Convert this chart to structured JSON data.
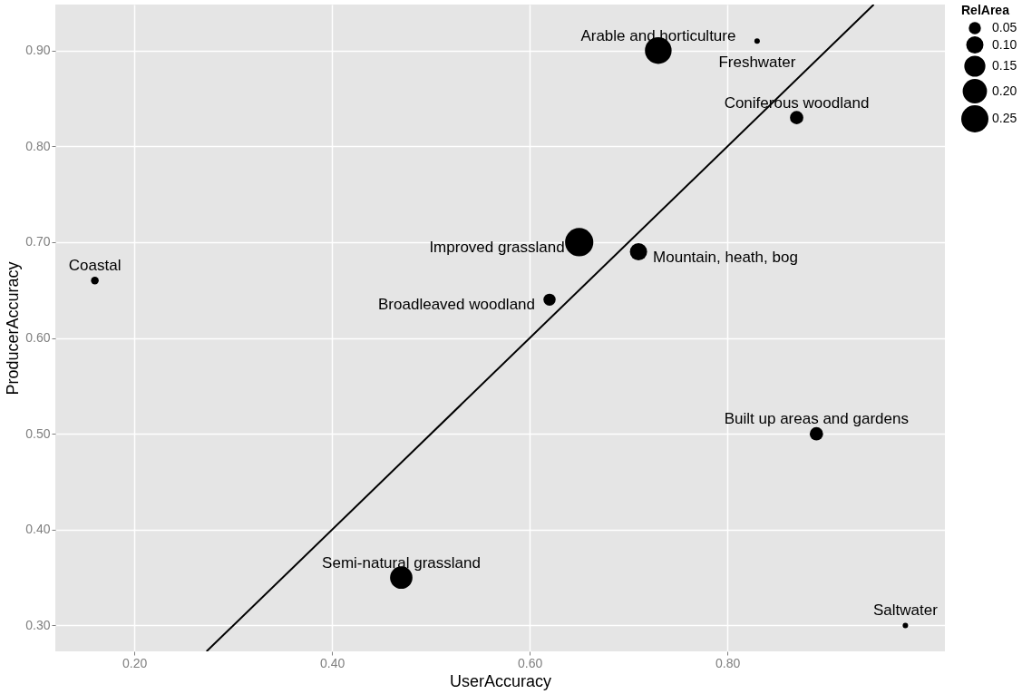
{
  "chart_data": {
    "type": "bubble",
    "xlabel": "UserAccuracy",
    "ylabel": "ProducerAccuracy",
    "legend_title": "RelArea",
    "xlim": [
      0.12,
      1.02
    ],
    "ylim": [
      0.273,
      0.948
    ],
    "xticks": [
      {
        "value": 0.2,
        "label": "0.20"
      },
      {
        "value": 0.4,
        "label": "0.40"
      },
      {
        "value": 0.6,
        "label": "0.60"
      },
      {
        "value": 0.8,
        "label": "0.80"
      }
    ],
    "yticks": [
      {
        "value": 0.3,
        "label": "0.30"
      },
      {
        "value": 0.4,
        "label": "0.40"
      },
      {
        "value": 0.5,
        "label": "0.50"
      },
      {
        "value": 0.6,
        "label": "0.60"
      },
      {
        "value": 0.7,
        "label": "0.70"
      },
      {
        "value": 0.8,
        "label": "0.80"
      },
      {
        "value": 0.9,
        "label": "0.90"
      }
    ],
    "grid": true,
    "size_legend": [
      {
        "value": 0.05,
        "label": "0.05"
      },
      {
        "value": 0.1,
        "label": "0.10"
      },
      {
        "value": 0.15,
        "label": "0.15"
      },
      {
        "value": 0.2,
        "label": "0.20"
      },
      {
        "value": 0.25,
        "label": "0.25"
      }
    ],
    "series": [
      {
        "type": "bubble",
        "color": "#000000",
        "x": [
          0.16,
          0.62,
          0.65,
          0.71,
          0.73,
          0.83,
          0.87,
          0.89,
          0.98,
          0.47
        ],
        "values": [
          0.66,
          0.64,
          0.7,
          0.69,
          0.9,
          0.91,
          0.83,
          0.5,
          0.3,
          0.35
        ],
        "sizes": [
          0.02,
          0.05,
          0.27,
          0.1,
          0.24,
          0.01,
          0.06,
          0.06,
          0.01,
          0.17
        ]
      },
      {
        "type": "line",
        "color": "#000000",
        "x": [
          0.273,
          0.948
        ],
        "values": [
          0.273,
          0.948
        ]
      }
    ],
    "annotations": [
      {
        "text": "Coastal",
        "x": 0.16,
        "y": 0.66
      },
      {
        "text": "Broadleaved woodland",
        "x": 0.62,
        "y": 0.64
      },
      {
        "text": "Improved grassland",
        "x": 0.65,
        "y": 0.7
      },
      {
        "text": "Mountain, heath, bog",
        "x": 0.71,
        "y": 0.69
      },
      {
        "text": "Arable and horticulture",
        "x": 0.73,
        "y": 0.9
      },
      {
        "text": "Freshwater",
        "x": 0.83,
        "y": 0.91
      },
      {
        "text": "Coniferous woodland",
        "x": 0.87,
        "y": 0.83
      },
      {
        "text": "Built up areas and gardens",
        "x": 0.89,
        "y": 0.5
      },
      {
        "text": "Saltwater",
        "x": 0.98,
        "y": 0.3
      },
      {
        "text": "Semi-natural grassland",
        "x": 0.47,
        "y": 0.35
      }
    ]
  }
}
